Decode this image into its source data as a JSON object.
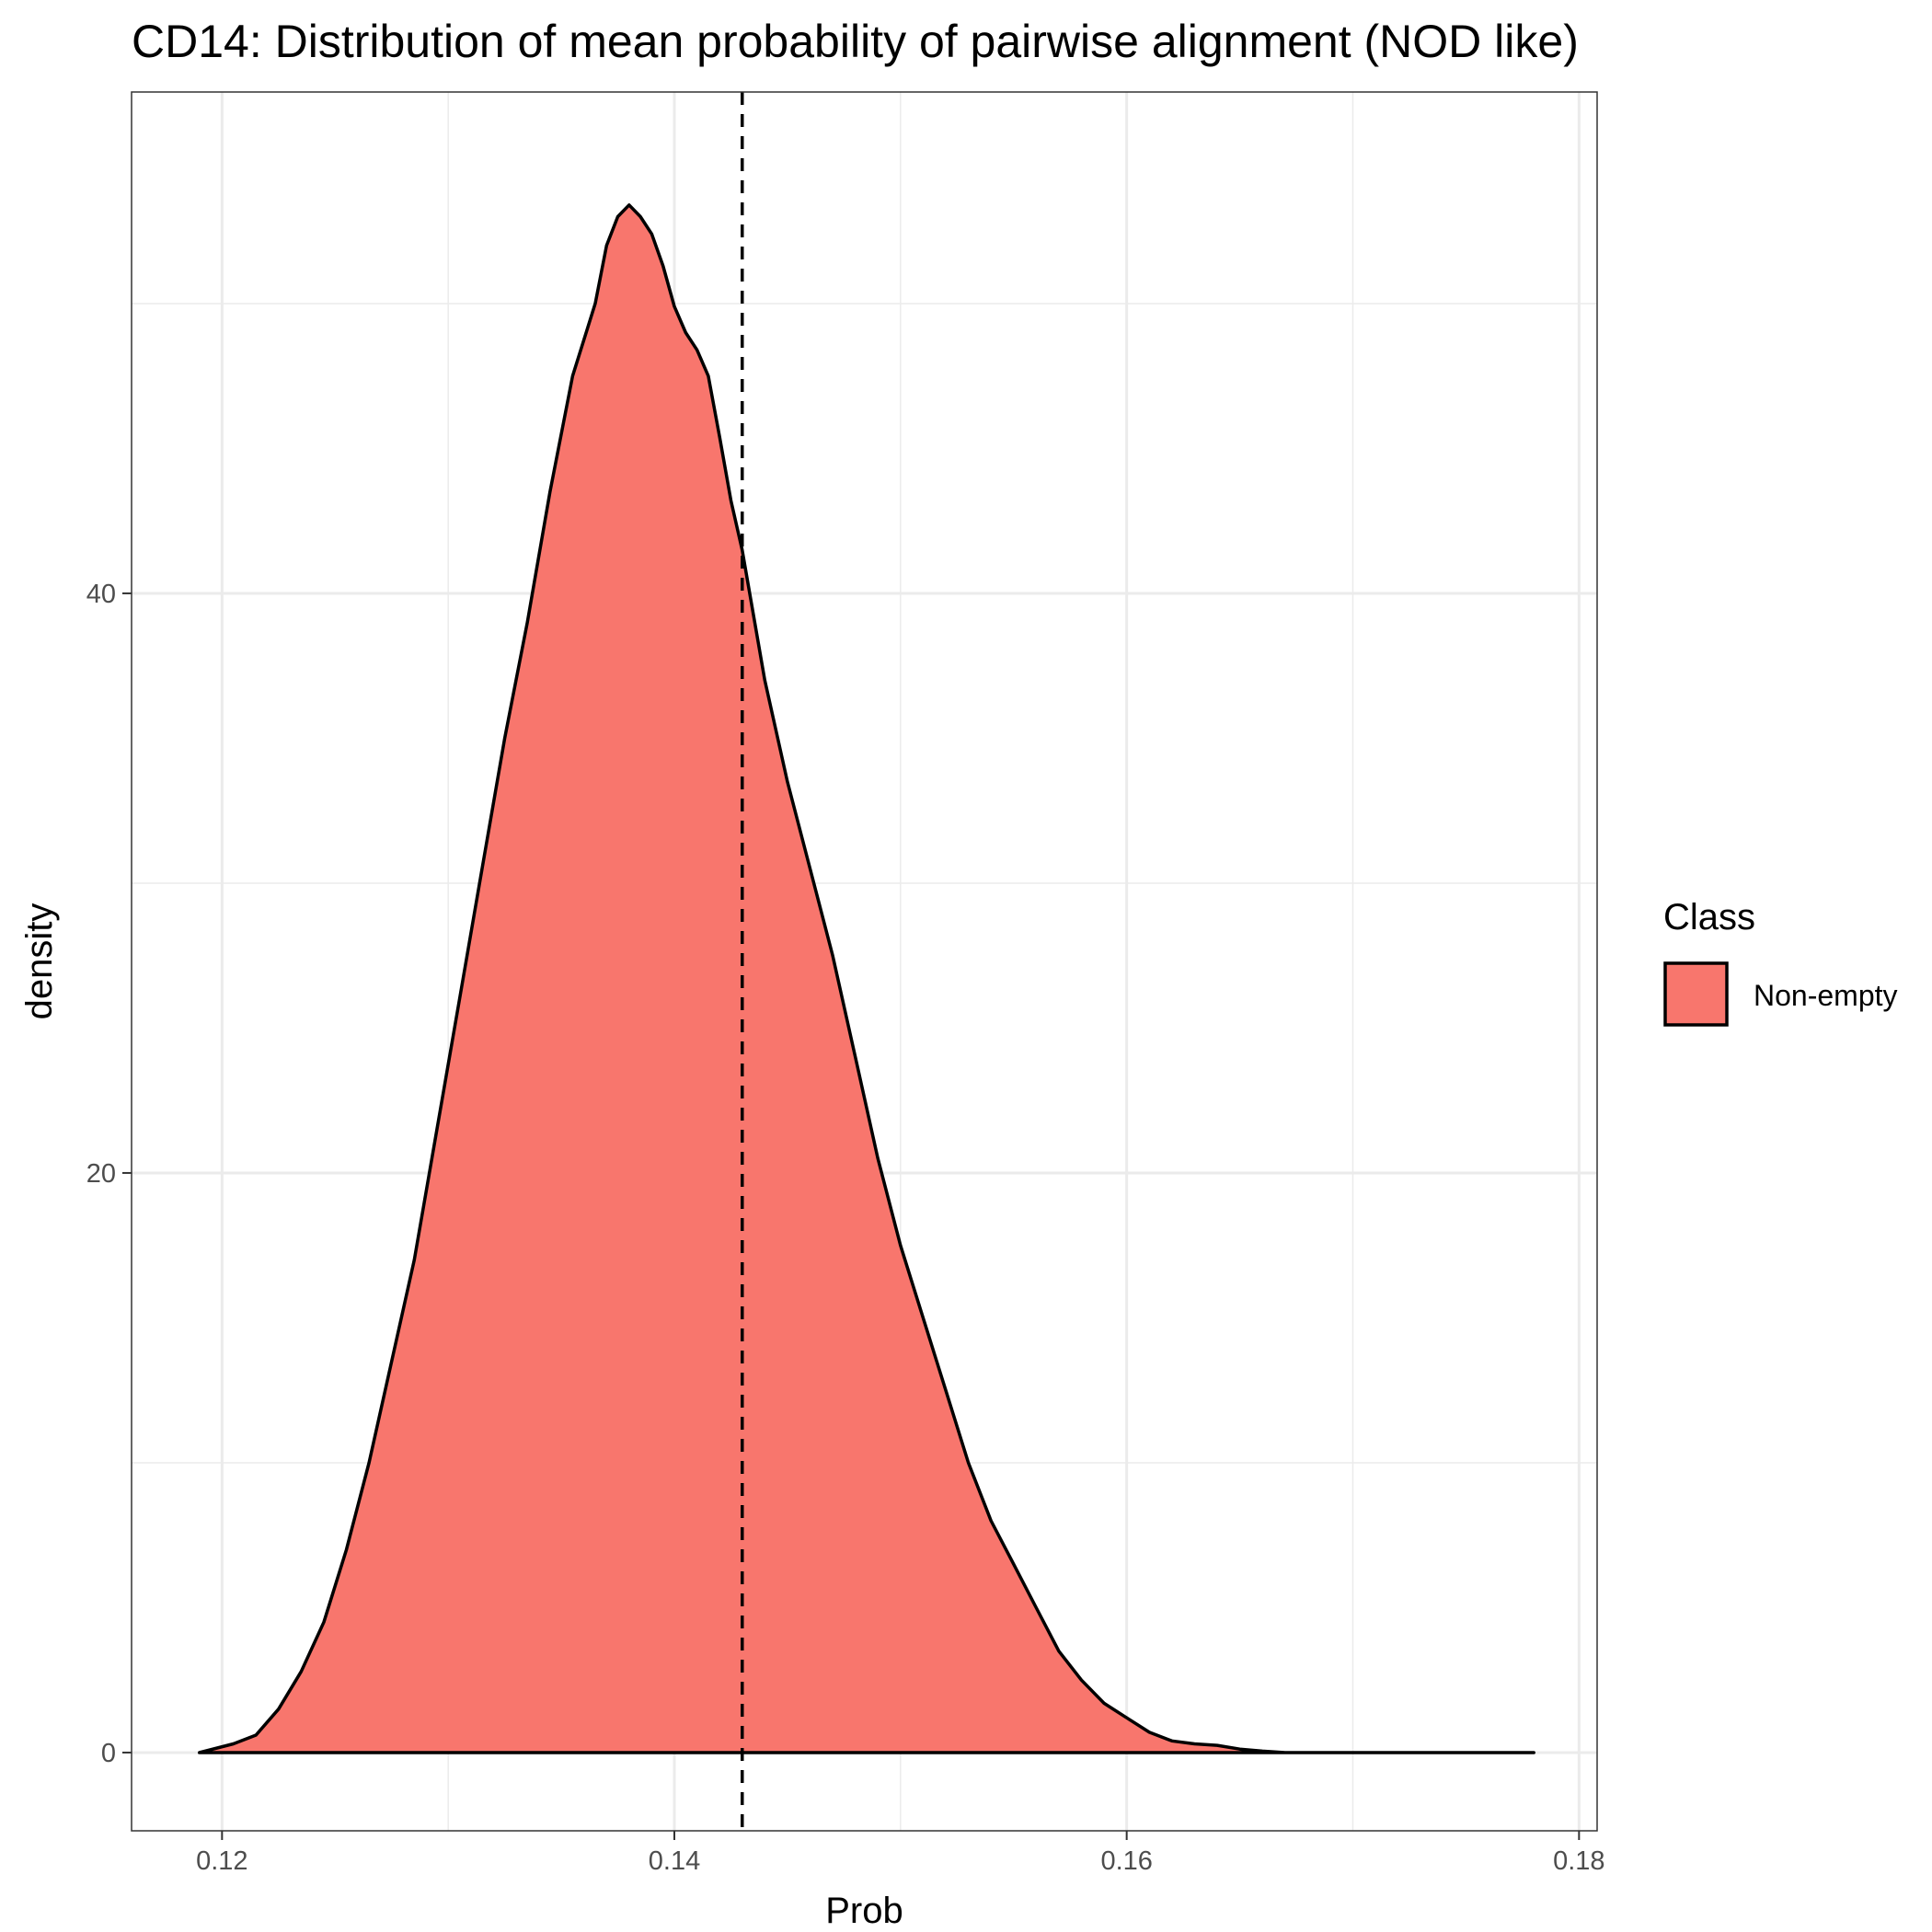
{
  "chart_data": {
    "type": "area",
    "title": "CD14: Distribution of mean probability of pairwise alignment (NOD like)",
    "xlabel": "Prob",
    "ylabel": "density",
    "xlim": [
      0.116,
      0.1808
    ],
    "ylim": [
      -2.7,
      57.3
    ],
    "x_ticks": [
      0.12,
      0.14,
      0.16,
      0.18
    ],
    "x_tick_labels": [
      "0.12",
      "0.14",
      "0.16",
      "0.18"
    ],
    "y_ticks": [
      0,
      20,
      40
    ],
    "y_tick_labels": [
      "0",
      "20",
      "40"
    ],
    "y_minor_ticks": [
      10,
      30,
      50
    ],
    "grid": true,
    "legend": {
      "title": "Class",
      "position": "right",
      "entries": [
        {
          "label": "Non-empty",
          "color": "#F8766D"
        }
      ]
    },
    "vline": {
      "x": 0.143,
      "style": "dashed"
    },
    "series": [
      {
        "name": "Non-empty",
        "color": "#F8766D",
        "points": [
          [
            0.119,
            0.0
          ],
          [
            0.1205,
            0.3
          ],
          [
            0.1215,
            0.6
          ],
          [
            0.1225,
            1.5
          ],
          [
            0.1235,
            2.8
          ],
          [
            0.1245,
            4.5
          ],
          [
            0.1255,
            7.0
          ],
          [
            0.1265,
            10.0
          ],
          [
            0.1275,
            13.5
          ],
          [
            0.1285,
            17.0
          ],
          [
            0.1295,
            21.5
          ],
          [
            0.1305,
            26.0
          ],
          [
            0.1315,
            30.5
          ],
          [
            0.1325,
            35.0
          ],
          [
            0.1335,
            39.0
          ],
          [
            0.1345,
            43.5
          ],
          [
            0.1355,
            47.5
          ],
          [
            0.1365,
            50.0
          ],
          [
            0.137,
            52.0
          ],
          [
            0.1375,
            53.0
          ],
          [
            0.138,
            53.4
          ],
          [
            0.1385,
            53.0
          ],
          [
            0.139,
            52.4
          ],
          [
            0.1395,
            51.3
          ],
          [
            0.14,
            49.9
          ],
          [
            0.1405,
            49.0
          ],
          [
            0.141,
            48.4
          ],
          [
            0.1415,
            47.5
          ],
          [
            0.142,
            45.4
          ],
          [
            0.1425,
            43.2
          ],
          [
            0.143,
            41.5
          ],
          [
            0.144,
            37.0
          ],
          [
            0.145,
            33.5
          ],
          [
            0.146,
            30.5
          ],
          [
            0.147,
            27.5
          ],
          [
            0.148,
            24.0
          ],
          [
            0.149,
            20.5
          ],
          [
            0.15,
            17.5
          ],
          [
            0.151,
            15.0
          ],
          [
            0.152,
            12.5
          ],
          [
            0.153,
            10.0
          ],
          [
            0.154,
            8.0
          ],
          [
            0.155,
            6.5
          ],
          [
            0.156,
            5.0
          ],
          [
            0.157,
            3.5
          ],
          [
            0.158,
            2.5
          ],
          [
            0.159,
            1.7
          ],
          [
            0.16,
            1.2
          ],
          [
            0.161,
            0.7
          ],
          [
            0.162,
            0.4
          ],
          [
            0.163,
            0.3
          ],
          [
            0.164,
            0.25
          ],
          [
            0.165,
            0.12
          ],
          [
            0.166,
            0.05
          ],
          [
            0.167,
            0.0
          ],
          [
            0.168,
            0.0
          ],
          [
            0.17,
            0.0
          ],
          [
            0.172,
            0.0
          ],
          [
            0.174,
            0.0
          ],
          [
            0.176,
            0.0
          ],
          [
            0.178,
            0.0
          ]
        ]
      }
    ]
  }
}
